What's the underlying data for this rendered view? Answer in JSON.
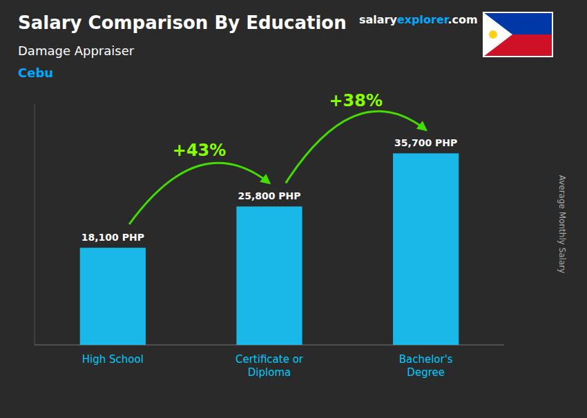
{
  "chart_data": {
    "type": "bar",
    "title": "Salary Comparison By Education",
    "subtitle": "Damage Appraiser",
    "location": "Cebu",
    "ylabel": "Average Monthly Salary",
    "brand": [
      "salary",
      "explorer",
      ".com"
    ],
    "categories": [
      "High School",
      "Certificate or\nDiploma",
      "Bachelor's\nDegree"
    ],
    "values": [
      18100,
      25800,
      35700
    ],
    "value_labels": [
      "18,100 PHP",
      "25,800 PHP",
      "35,700 PHP"
    ],
    "data_labels": true,
    "annotations": [
      "+43%",
      "+38%"
    ],
    "color": "#1ab8e8",
    "ylim": [
      0,
      45000
    ],
    "grid": false,
    "tick_labels": "x"
  }
}
